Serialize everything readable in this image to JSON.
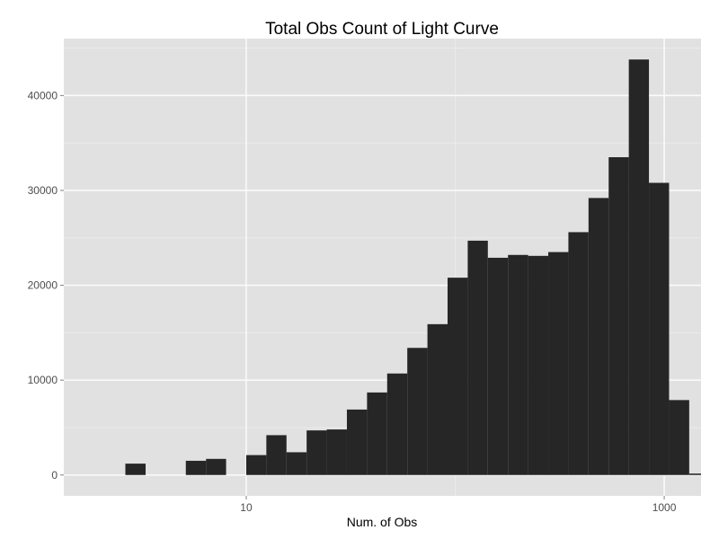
{
  "chart_data": {
    "type": "bar",
    "title": "Total Obs Count of Light Curve",
    "xlabel": "Num. of Obs",
    "ylabel": "",
    "x_scale": "log10",
    "xlim": [
      1.34,
      1500
    ],
    "ylim": [
      -2200,
      46000
    ],
    "x_ticks": [
      {
        "value": 10,
        "label": "10"
      },
      {
        "value": 1000,
        "label": "1000"
      }
    ],
    "y_ticks": [
      {
        "value": 0,
        "label": "0"
      },
      {
        "value": 10000,
        "label": "10000"
      },
      {
        "value": 20000,
        "label": "20000"
      },
      {
        "value": 30000,
        "label": "30000"
      },
      {
        "value": 40000,
        "label": "40000"
      }
    ],
    "bins": [
      {
        "x_min": 2.64,
        "x_max": 3.3,
        "count": 1200
      },
      {
        "x_min": 3.3,
        "x_max": 4.12,
        "count": 0
      },
      {
        "x_min": 4.12,
        "x_max": 5.14,
        "count": 0
      },
      {
        "x_min": 5.14,
        "x_max": 6.42,
        "count": 1500
      },
      {
        "x_min": 6.42,
        "x_max": 8.01,
        "count": 1700
      },
      {
        "x_min": 8.01,
        "x_max": 10.0,
        "count": 0
      },
      {
        "x_min": 10.0,
        "x_max": 12.48,
        "count": 2100
      },
      {
        "x_min": 12.48,
        "x_max": 15.58,
        "count": 4200
      },
      {
        "x_min": 15.58,
        "x_max": 19.45,
        "count": 2400
      },
      {
        "x_min": 19.45,
        "x_max": 24.28,
        "count": 4700
      },
      {
        "x_min": 24.28,
        "x_max": 30.31,
        "count": 4800
      },
      {
        "x_min": 30.31,
        "x_max": 37.84,
        "count": 6900
      },
      {
        "x_min": 37.84,
        "x_max": 47.24,
        "count": 8700
      },
      {
        "x_min": 47.24,
        "x_max": 58.97,
        "count": 10700
      },
      {
        "x_min": 58.97,
        "x_max": 73.62,
        "count": 13400
      },
      {
        "x_min": 73.62,
        "x_max": 91.91,
        "count": 15900
      },
      {
        "x_min": 91.91,
        "x_max": 114.74,
        "count": 20800
      },
      {
        "x_min": 114.74,
        "x_max": 143.24,
        "count": 24700
      },
      {
        "x_min": 143.24,
        "x_max": 178.82,
        "count": 22900
      },
      {
        "x_min": 178.82,
        "x_max": 223.24,
        "count": 23200
      },
      {
        "x_min": 223.24,
        "x_max": 278.69,
        "count": 23100
      },
      {
        "x_min": 278.69,
        "x_max": 347.91,
        "count": 23500
      },
      {
        "x_min": 347.91,
        "x_max": 434.32,
        "count": 25600
      },
      {
        "x_min": 434.32,
        "x_max": 542.2,
        "count": 29200
      },
      {
        "x_min": 542.2,
        "x_max": 676.88,
        "count": 33500
      },
      {
        "x_min": 676.88,
        "x_max": 845.01,
        "count": 43800
      },
      {
        "x_min": 845.01,
        "x_max": 1054.9,
        "count": 30800
      },
      {
        "x_min": 1054.9,
        "x_max": 1316.92,
        "count": 7900
      },
      {
        "x_min": 1316.92,
        "x_max": 1644.03,
        "count": 150
      },
      {
        "x_min": 1644.03,
        "x_max": 2052.4,
        "count": 60
      }
    ],
    "grid": true,
    "legend": "none",
    "colors": {
      "panel": "#e1e1e1",
      "grid_major": "#fafafa",
      "grid_minor": "#ebebeb",
      "bar": "#262626",
      "tick": "#7f7f7f"
    }
  }
}
